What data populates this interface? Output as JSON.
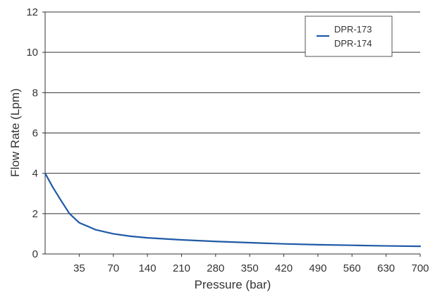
{
  "chart_data": {
    "type": "line",
    "title": "",
    "xlabel": "Pressure (bar)",
    "ylabel": "Flow Rate (Lpm)",
    "ylim": [
      0,
      12
    ],
    "y_ticks": [
      0,
      2,
      4,
      6,
      8,
      10,
      12
    ],
    "x_tick_labels": [
      "35",
      "70",
      "140",
      "210",
      "280",
      "350",
      "420",
      "490",
      "560",
      "630",
      "700"
    ],
    "x_categorical_scale": true,
    "grid": "horizontal",
    "legend_position": "top-right",
    "legend_entries": [
      "DPR-173",
      "DPR-174"
    ],
    "series": [
      {
        "name": "DPR-173 / DPR-174",
        "color": "#1f5aa6",
        "points": [
          {
            "x": 0,
            "y": 4.0
          },
          {
            "x": 8,
            "y": 3.3
          },
          {
            "x": 17,
            "y": 2.6
          },
          {
            "x": 25,
            "y": 2.0
          },
          {
            "x": 35,
            "y": 1.55
          },
          {
            "x": 52,
            "y": 1.2
          },
          {
            "x": 70,
            "y": 1.0
          },
          {
            "x": 105,
            "y": 0.88
          },
          {
            "x": 140,
            "y": 0.8
          },
          {
            "x": 210,
            "y": 0.7
          },
          {
            "x": 280,
            "y": 0.62
          },
          {
            "x": 350,
            "y": 0.56
          },
          {
            "x": 420,
            "y": 0.5
          },
          {
            "x": 490,
            "y": 0.46
          },
          {
            "x": 560,
            "y": 0.43
          },
          {
            "x": 630,
            "y": 0.4
          },
          {
            "x": 700,
            "y": 0.38
          }
        ]
      }
    ]
  }
}
